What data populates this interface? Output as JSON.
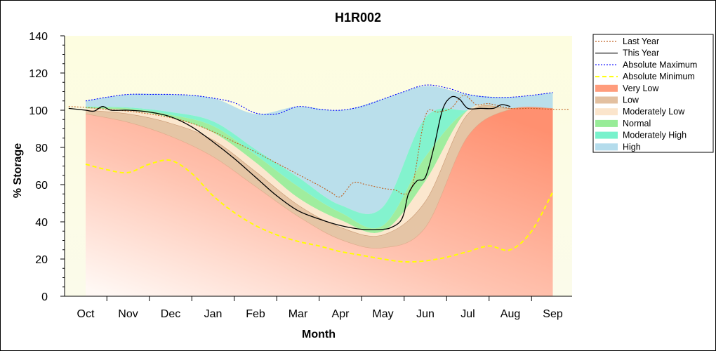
{
  "chart_data": {
    "type": "area",
    "title": "H1R002",
    "xlabel": "Month",
    "ylabel": "% Storage",
    "ylim": [
      0,
      140
    ],
    "yticks": [
      0,
      20,
      40,
      60,
      80,
      100,
      120,
      140
    ],
    "categories": [
      "Oct",
      "Nov",
      "Dec",
      "Jan",
      "Feb",
      "Mar",
      "Apr",
      "May",
      "Jun",
      "Jul",
      "Aug",
      "Sep"
    ],
    "x": [
      0,
      1,
      2,
      3,
      4,
      5,
      6,
      7,
      8,
      9,
      10,
      11
    ],
    "legend_position": "right",
    "bands": [
      {
        "name": "High",
        "color": "#b4dcec",
        "lower": [
          102,
          101.5,
          99,
          94,
          79,
          64,
          49,
          48,
          96,
          100,
          101,
          101
        ],
        "upper": [
          105,
          108.5,
          108.5,
          106.5,
          98,
          102,
          100,
          106,
          113,
          108.5,
          107,
          109.5
        ]
      },
      {
        "name": "Moderately High",
        "color": "#78f2cc",
        "lower": [
          101.5,
          101,
          97.5,
          91.5,
          76,
          59,
          45,
          38,
          75,
          100,
          101,
          101
        ],
        "upper": [
          102,
          101.5,
          99,
          94,
          79,
          64,
          49,
          48,
          96,
          100,
          101,
          101
        ]
      },
      {
        "name": "Normal",
        "color": "#98ec98",
        "lower": [
          101,
          100,
          96,
          88,
          72,
          53,
          41,
          35,
          62,
          100,
          101,
          101
        ],
        "upper": [
          101.5,
          101,
          97.5,
          91.5,
          76,
          59,
          45,
          38,
          75,
          100,
          101,
          101
        ]
      },
      {
        "name": "Moderately Low",
        "color": "#fbe5cc",
        "lower": [
          100,
          98,
          93,
          84,
          67,
          49,
          37,
          33,
          51,
          98,
          101,
          101
        ],
        "upper": [
          101,
          100,
          96,
          88,
          72,
          53,
          41,
          35,
          62,
          100,
          101,
          101
        ]
      },
      {
        "name": "Low",
        "color": "#e3c0a0",
        "lower": [
          98,
          93.5,
          86,
          75,
          59,
          43,
          30.5,
          26,
          37,
          86,
          100.5,
          101
        ],
        "upper": [
          100,
          98,
          93,
          84,
          67,
          49,
          37,
          33,
          51,
          98,
          101,
          101
        ]
      },
      {
        "name": "Very Low",
        "color": "#ff9c7c",
        "lower": [
          0,
          0,
          0,
          0,
          0,
          0,
          0,
          0,
          0,
          0,
          0,
          0
        ],
        "upper": [
          98,
          93.5,
          86,
          75,
          59,
          43,
          30.5,
          26,
          37,
          86,
          100.5,
          101
        ]
      }
    ],
    "series": [
      {
        "name": "Last Year",
        "color": "#c06020",
        "style": "dotted",
        "x": [
          -0.4,
          0,
          0.5,
          1,
          1.5,
          2,
          2.5,
          3,
          3.5,
          4,
          4.5,
          5,
          5.5,
          5.8,
          6,
          6.3,
          6.6,
          7,
          7.3,
          7.5,
          7.7,
          8,
          8.3,
          8.6,
          8.9,
          9.2,
          9.5,
          10,
          10.5,
          11,
          11.4
        ],
        "y": [
          102,
          101.5,
          100.5,
          99.5,
          98,
          96,
          93,
          88.5,
          83,
          77.5,
          71.5,
          65.5,
          59.5,
          55.5,
          53.5,
          61,
          60,
          58,
          57,
          55,
          60,
          97,
          99,
          101,
          108,
          103,
          103.5,
          101,
          101,
          100.5,
          100.5
        ]
      },
      {
        "name": "This Year",
        "color": "#000000",
        "style": "solid",
        "x": [
          -0.4,
          0,
          0.2,
          0.4,
          0.6,
          1,
          1.5,
          2,
          2.5,
          3,
          3.5,
          4,
          4.5,
          5,
          5.5,
          6,
          6.5,
          7,
          7.2,
          7.4,
          7.5,
          7.6,
          7.8,
          8,
          8.2,
          8.4,
          8.6,
          8.8,
          9,
          9.3,
          9.6,
          9.8,
          10
        ],
        "y": [
          101,
          100,
          99.5,
          102,
          100,
          100,
          99,
          96.5,
          91,
          83,
          74,
          64,
          54,
          46,
          41.5,
          38,
          36,
          36,
          37,
          40,
          45,
          55,
          62,
          64,
          80,
          100,
          107,
          106,
          101,
          101,
          101,
          103,
          102
        ]
      },
      {
        "name": "Absolute Maximum",
        "color": "#0000ff",
        "style": "dotted",
        "x": [
          0,
          0.5,
          1,
          1.5,
          2,
          2.5,
          3,
          3.5,
          4,
          4.5,
          5,
          5.5,
          6,
          6.5,
          7,
          7.5,
          8,
          8.5,
          9,
          9.5,
          10,
          10.5,
          11
        ],
        "y": [
          105,
          107,
          108.5,
          108.5,
          108.5,
          108,
          106.5,
          104,
          98.5,
          98,
          102,
          100.5,
          100,
          102,
          106,
          110,
          113.5,
          112,
          108.5,
          107,
          107,
          108,
          109.5
        ]
      },
      {
        "name": "Absolute Minimum",
        "color": "#ffff00",
        "style": "dashed",
        "x": [
          0,
          0.5,
          1,
          1.5,
          2,
          2.5,
          3,
          3.5,
          4,
          4.5,
          5,
          5.5,
          6,
          6.5,
          7,
          7.5,
          8,
          8.5,
          9,
          9.5,
          10,
          10.5,
          11
        ],
        "y": [
          71,
          68,
          66.5,
          71,
          73,
          66,
          54,
          45,
          38,
          33,
          29.5,
          27,
          24,
          22,
          20,
          18.5,
          19,
          21,
          24,
          27,
          25,
          35,
          56
        ]
      }
    ],
    "legend": [
      "Last Year",
      "This Year",
      "Absolute Maximum",
      "Absolute Minimum",
      "Very Low",
      "Low",
      "Moderately Low",
      "Normal",
      "Moderately High",
      "High"
    ]
  }
}
